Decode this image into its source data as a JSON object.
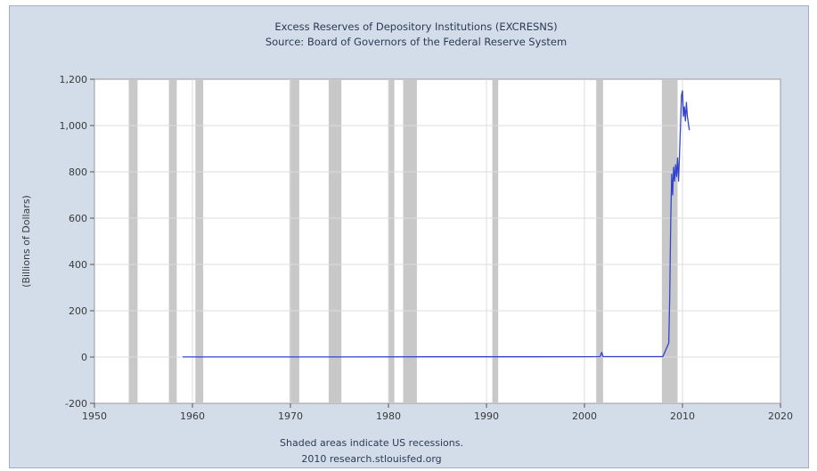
{
  "chart_data": {
    "type": "line",
    "title": "Excess Reserves of Depository Institutions (EXCRESNS)",
    "subtitle": "Source: Board of Governors of the Federal Reserve System",
    "ylabel": "(Billions of Dollars)",
    "xlabel": "",
    "footnote": "Shaded areas indicate US recessions.",
    "credit": "2010 research.stlouisfed.org",
    "xlim": [
      1950,
      2020
    ],
    "ylim": [
      -200,
      1200
    ],
    "x_ticks": [
      1950,
      1960,
      1970,
      1980,
      1990,
      2000,
      2010,
      2020
    ],
    "x_tick_labels": [
      "1950",
      "1960",
      "1970",
      "1980",
      "1990",
      "2000",
      "2010",
      "2020"
    ],
    "y_ticks": [
      -200,
      0,
      200,
      400,
      600,
      800,
      1000,
      1200
    ],
    "y_tick_labels": [
      "-200",
      "0",
      "200",
      "400",
      "600",
      "800",
      "1,000",
      "1,200"
    ],
    "grid": true,
    "series_color": "#3344cc",
    "recession_color": "#c8c8c8",
    "recessions": [
      [
        1953.5,
        1954.4
      ],
      [
        1957.6,
        1958.4
      ],
      [
        1960.3,
        1961.1
      ],
      [
        1969.9,
        1970.9
      ],
      [
        1973.9,
        1975.2
      ],
      [
        1980.0,
        1980.6
      ],
      [
        1981.5,
        1982.9
      ],
      [
        1990.6,
        1991.2
      ],
      [
        2001.2,
        2001.9
      ],
      [
        2007.9,
        2009.5
      ]
    ],
    "series": [
      {
        "x": [
          1959.0,
          1965.0,
          1975.0,
          1985.0,
          1995.0,
          2000.0,
          2001.6,
          2001.75,
          2001.9,
          2005.0,
          2008.0,
          2008.6,
          2008.7,
          2008.8,
          2008.9,
          2009.0,
          2009.05,
          2009.1,
          2009.2,
          2009.3,
          2009.4,
          2009.5,
          2009.6,
          2009.7,
          2009.8,
          2009.9,
          2010.0,
          2010.1,
          2010.2,
          2010.3,
          2010.4,
          2010.5,
          2010.6,
          2010.7
        ],
        "y": [
          0.5,
          0.5,
          0.3,
          1.0,
          1.0,
          1.5,
          2.0,
          20,
          2.0,
          1.8,
          2.0,
          60,
          260,
          580,
          790,
          700,
          760,
          820,
          760,
          830,
          780,
          860,
          760,
          880,
          1000,
          1130,
          1150,
          1040,
          1080,
          1020,
          1100,
          1040,
          1010,
          980
        ]
      }
    ]
  }
}
